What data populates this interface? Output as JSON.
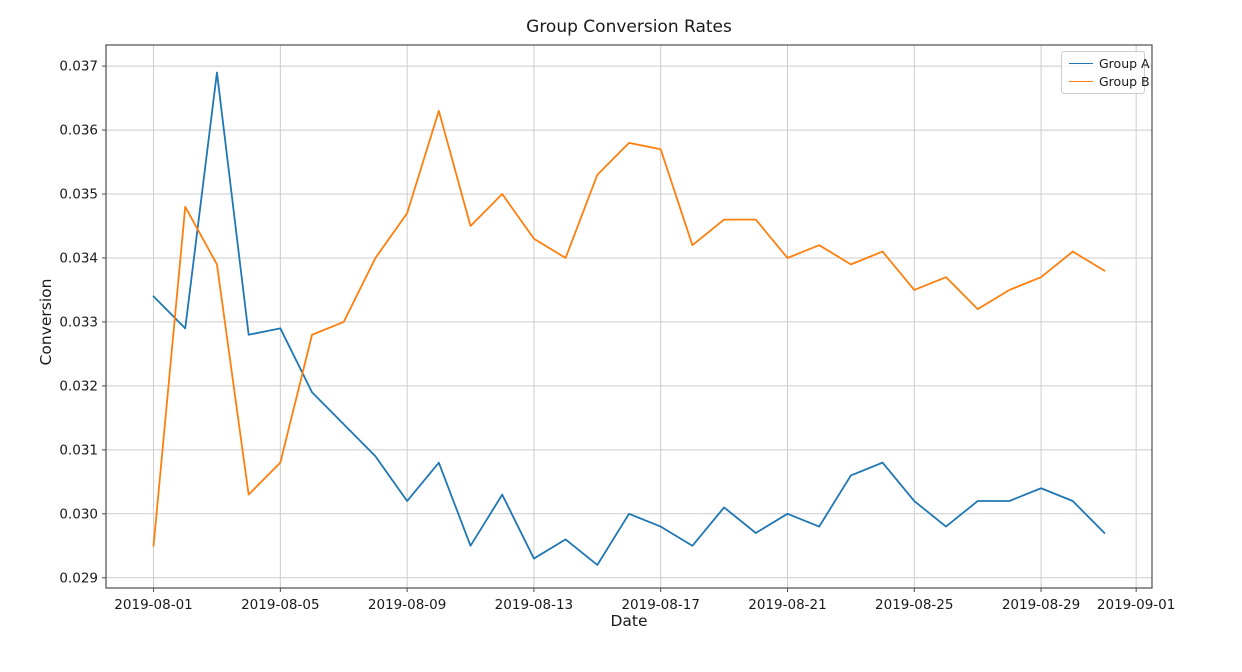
{
  "chart_data": {
    "type": "line",
    "title": "Group Conversion Rates",
    "xlabel": "Date",
    "ylabel": "Conversion",
    "grid": true,
    "legend_position": "upper right",
    "x": [
      "2019-08-01",
      "2019-08-02",
      "2019-08-03",
      "2019-08-04",
      "2019-08-05",
      "2019-08-06",
      "2019-08-07",
      "2019-08-08",
      "2019-08-09",
      "2019-08-10",
      "2019-08-11",
      "2019-08-12",
      "2019-08-13",
      "2019-08-14",
      "2019-08-15",
      "2019-08-16",
      "2019-08-17",
      "2019-08-18",
      "2019-08-19",
      "2019-08-20",
      "2019-08-21",
      "2019-08-22",
      "2019-08-23",
      "2019-08-24",
      "2019-08-25",
      "2019-08-26",
      "2019-08-27",
      "2019-08-28",
      "2019-08-29",
      "2019-08-30",
      "2019-08-31"
    ],
    "series": [
      {
        "name": "Group A",
        "color": "#1f77b4",
        "values": [
          0.0334,
          0.0329,
          0.0369,
          0.0328,
          0.0329,
          0.0319,
          0.0314,
          0.0309,
          0.0302,
          0.0308,
          0.0295,
          0.0303,
          0.0293,
          0.0296,
          0.0292,
          0.03,
          0.0298,
          0.0295,
          0.0301,
          0.0297,
          0.03,
          0.0298,
          0.0306,
          0.0308,
          0.0302,
          0.0298,
          0.0302,
          0.0302,
          0.0304,
          0.0302,
          0.0297
        ]
      },
      {
        "name": "Group B",
        "color": "#ff7f0e",
        "values": [
          0.0295,
          0.0348,
          0.0339,
          0.0303,
          0.0308,
          0.0328,
          0.033,
          0.034,
          0.0347,
          0.0363,
          0.0345,
          0.035,
          0.0343,
          0.034,
          0.0353,
          0.0358,
          0.0357,
          0.0342,
          0.0346,
          0.0346,
          0.034,
          0.0342,
          0.0339,
          0.0341,
          0.0335,
          0.0337,
          0.0332,
          0.0335,
          0.0337,
          0.0341,
          0.0338
        ]
      }
    ],
    "x_tick_labels": [
      "2019-08-01",
      "2019-08-05",
      "2019-08-09",
      "2019-08-13",
      "2019-08-17",
      "2019-08-21",
      "2019-08-25",
      "2019-08-29",
      "2019-09-01"
    ],
    "y_ticks": [
      0.029,
      0.03,
      0.031,
      0.032,
      0.033,
      0.034,
      0.035,
      0.036,
      0.037
    ],
    "y_tick_labels": [
      "0.029",
      "0.030",
      "0.031",
      "0.032",
      "0.033",
      "0.034",
      "0.035",
      "0.036",
      "0.037"
    ],
    "xlim_days": [
      -1.5,
      31.5
    ],
    "ylim": [
      0.02884,
      0.03733
    ],
    "colors": {
      "grid": "#cccccc",
      "spine": "#4d4d4d",
      "text": "#1a1a1a",
      "background": "#ffffff"
    }
  }
}
